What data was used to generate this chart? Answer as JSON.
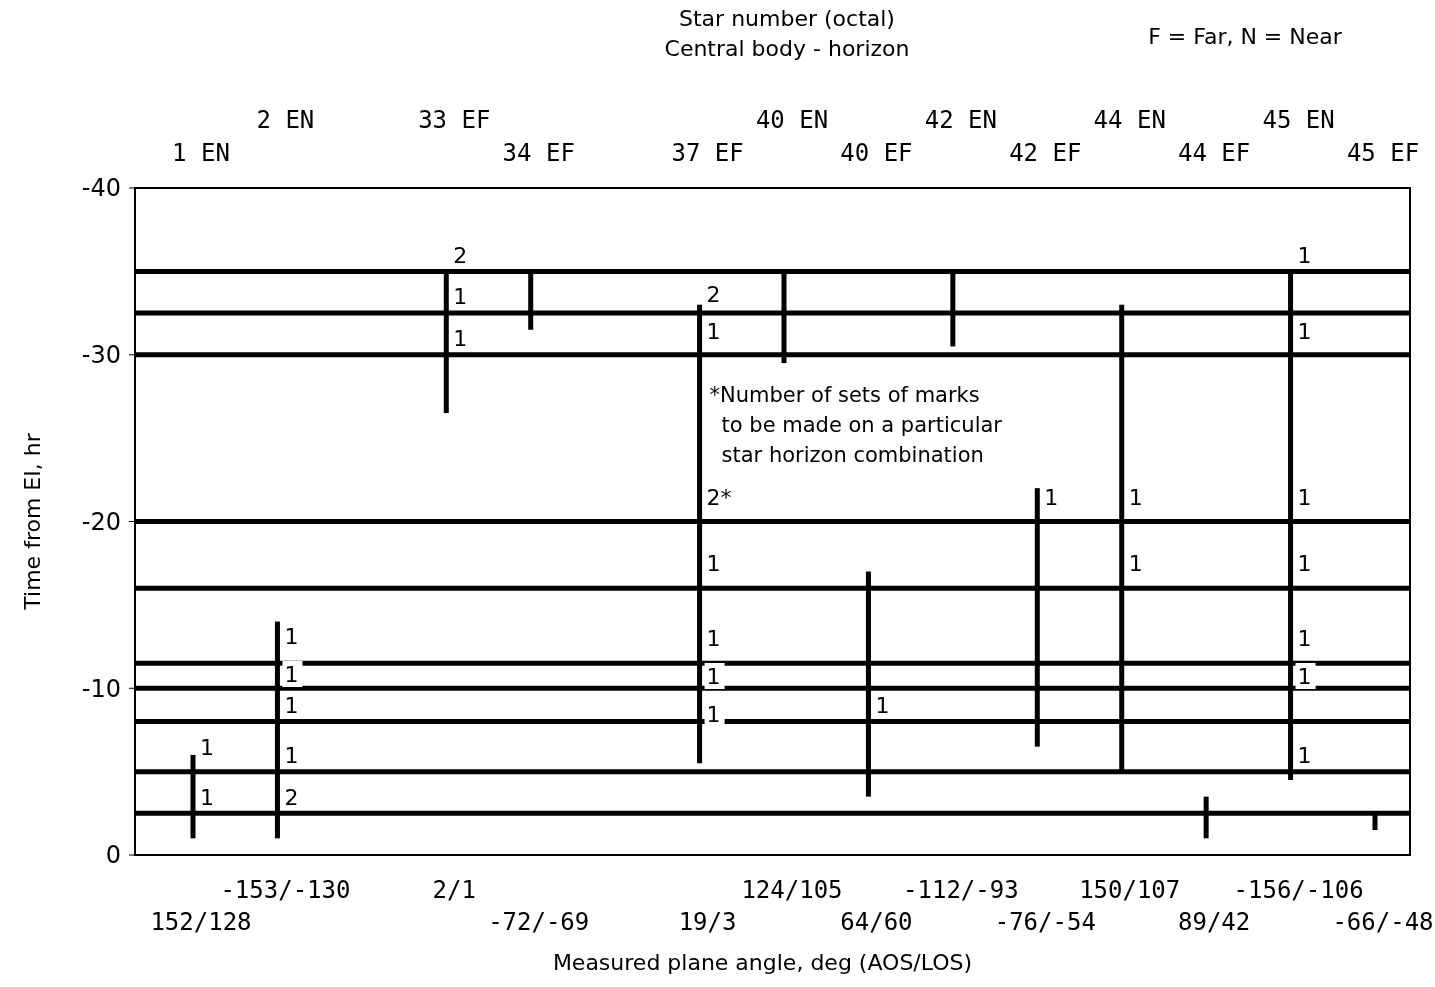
{
  "chart_data": {
    "type": "bar",
    "xlabel": "Measured plane angle, deg (AOS/LOS)",
    "x2label": "Star number (octal)\nCentral body - horizon",
    "ylabel": "Time from EI, hr",
    "categories": [
      "152/128",
      "-153/-130",
      null,
      "2/1",
      "-72/-69",
      null,
      "19/3",
      "124/105",
      "64/60",
      "-112/-93",
      "-76/-54",
      "150/107",
      "89/42",
      "-156/-106",
      "-66/-48"
    ],
    "base": [
      -1,
      -1,
      null,
      -26.5,
      -31.5,
      null,
      -5.5,
      -29.5,
      -3.5,
      -30.5,
      -6.5,
      -5,
      -1,
      -4.5,
      -1.5
    ],
    "values": [
      -5,
      -13,
      null,
      -8.5,
      -3.5,
      null,
      -27.5,
      -5.5,
      -13.5,
      -4.5,
      -15.5,
      -28,
      -2.5,
      -30.5,
      -1
    ],
    "color": "#000000",
    "ylim": [
      0,
      -40
    ],
    "yticks": [
      0,
      -10,
      -20,
      -30,
      -40
    ],
    "ref_lines": [
      {
        "axis": "y",
        "value": -35
      },
      {
        "axis": "y",
        "value": -32.5
      },
      {
        "axis": "y",
        "value": -30
      },
      {
        "axis": "y",
        "value": -20
      },
      {
        "axis": "y",
        "value": -16
      },
      {
        "axis": "y",
        "value": -11.5
      },
      {
        "axis": "y",
        "value": -10
      },
      {
        "axis": "y",
        "value": -8
      },
      {
        "axis": "y",
        "value": -5
      },
      {
        "axis": "y",
        "value": -2.5
      }
    ],
    "annotations": [
      "1 EN",
      "2 EN",
      "33 EF",
      "34 EF",
      "37 EF",
      "40 EN",
      "40 EF",
      "42 EN",
      "42 EF",
      "44 EN",
      "44 EF",
      "45 EN",
      "45 EF",
      "F = Far,  N = Near",
      "*Number of sets of marks\nto be made on a particular\nstar horizon combination",
      "1",
      "1",
      "1",
      "1",
      "1",
      "1",
      "2",
      "2",
      "1",
      "1",
      "2",
      "1",
      "2*",
      "1",
      "1",
      "1",
      "1",
      "1",
      "1",
      "1",
      "1",
      "1",
      "1",
      "1",
      "1",
      "1",
      "1",
      "1"
    ]
  }
}
